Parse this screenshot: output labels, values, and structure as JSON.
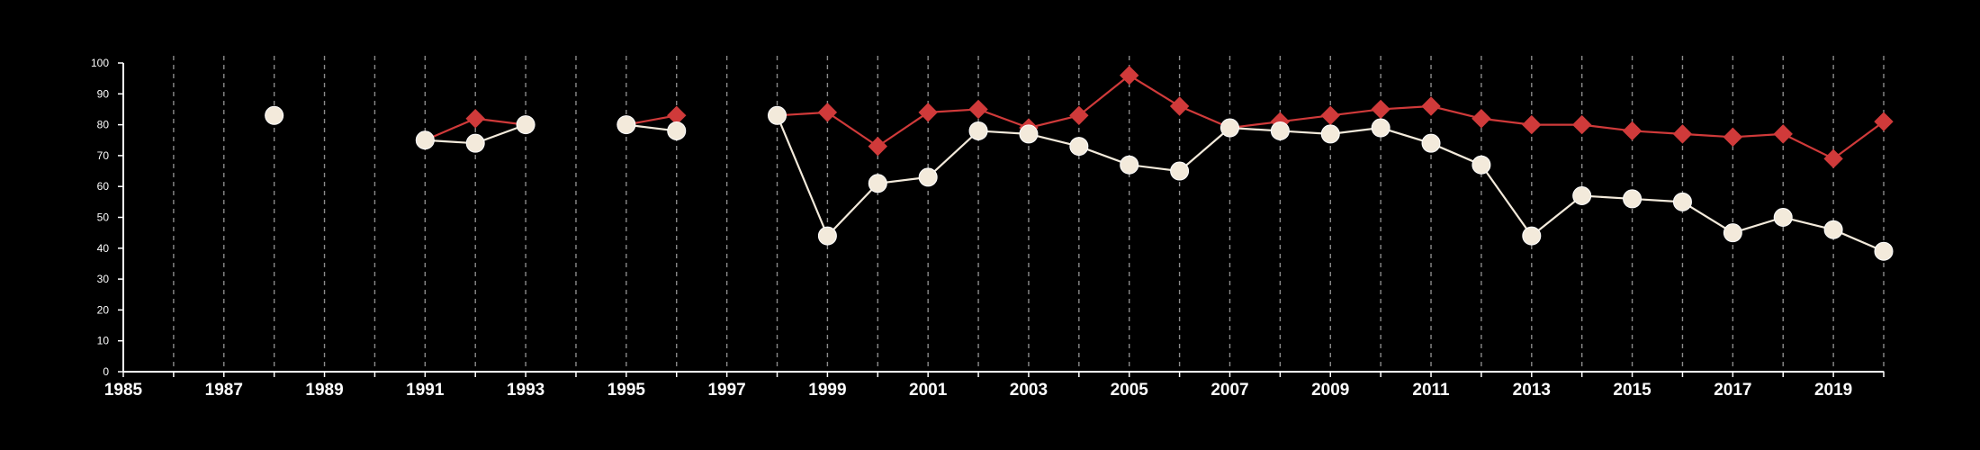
{
  "chart_data": {
    "type": "line",
    "title": "",
    "xlabel": "",
    "ylabel": "",
    "xlim": [
      1985,
      2020
    ],
    "ylim": [
      0,
      100
    ],
    "x_ticks": [
      1985,
      1987,
      1989,
      1991,
      1993,
      1995,
      1997,
      1999,
      2001,
      2003,
      2005,
      2007,
      2009,
      2011,
      2013,
      2015,
      2017,
      2019
    ],
    "y_ticks": [
      0,
      10,
      20,
      30,
      40,
      50,
      60,
      70,
      80,
      90,
      100
    ],
    "grid": "vertical dashed at every year",
    "legend": "none",
    "colors": {
      "background": "#000000",
      "axis": "#ffffff",
      "grid": "#8a8a8a"
    },
    "series": [
      {
        "color": "#d03a3a",
        "marker": "diamond",
        "points": [
          {
            "x": 1988,
            "y": 83
          },
          {
            "x": 1991,
            "y": 75
          },
          {
            "x": 1992,
            "y": 82
          },
          {
            "x": 1993,
            "y": 80
          },
          {
            "x": 1995,
            "y": 80
          },
          {
            "x": 1996,
            "y": 83
          },
          {
            "x": 1998,
            "y": 83
          },
          {
            "x": 1999,
            "y": 84
          },
          {
            "x": 2000,
            "y": 73
          },
          {
            "x": 2001,
            "y": 84
          },
          {
            "x": 2002,
            "y": 85
          },
          {
            "x": 2003,
            "y": 79
          },
          {
            "x": 2004,
            "y": 83
          },
          {
            "x": 2005,
            "y": 96
          },
          {
            "x": 2006,
            "y": 86
          },
          {
            "x": 2007,
            "y": 79
          },
          {
            "x": 2008,
            "y": 81
          },
          {
            "x": 2009,
            "y": 83
          },
          {
            "x": 2010,
            "y": 85
          },
          {
            "x": 2011,
            "y": 86
          },
          {
            "x": 2012,
            "y": 82
          },
          {
            "x": 2013,
            "y": 80
          },
          {
            "x": 2014,
            "y": 80
          },
          {
            "x": 2015,
            "y": 78
          },
          {
            "x": 2016,
            "y": 77
          },
          {
            "x": 2017,
            "y": 76
          },
          {
            "x": 2018,
            "y": 77
          },
          {
            "x": 2019,
            "y": 69
          },
          {
            "x": 2020,
            "y": 81
          }
        ]
      },
      {
        "color": "#f3eadb",
        "marker": "circle",
        "points": [
          {
            "x": 1988,
            "y": 83
          },
          {
            "x": 1991,
            "y": 75
          },
          {
            "x": 1992,
            "y": 74
          },
          {
            "x": 1993,
            "y": 80
          },
          {
            "x": 1995,
            "y": 80
          },
          {
            "x": 1996,
            "y": 78
          },
          {
            "x": 1998,
            "y": 83
          },
          {
            "x": 1999,
            "y": 44
          },
          {
            "x": 2000,
            "y": 61
          },
          {
            "x": 2001,
            "y": 63
          },
          {
            "x": 2002,
            "y": 78
          },
          {
            "x": 2003,
            "y": 77
          },
          {
            "x": 2004,
            "y": 73
          },
          {
            "x": 2005,
            "y": 67
          },
          {
            "x": 2006,
            "y": 65
          },
          {
            "x": 2007,
            "y": 79
          },
          {
            "x": 2008,
            "y": 78
          },
          {
            "x": 2009,
            "y": 77
          },
          {
            "x": 2010,
            "y": 79
          },
          {
            "x": 2011,
            "y": 74
          },
          {
            "x": 2012,
            "y": 67
          },
          {
            "x": 2013,
            "y": 44
          },
          {
            "x": 2014,
            "y": 57
          },
          {
            "x": 2015,
            "y": 56
          },
          {
            "x": 2016,
            "y": 55
          },
          {
            "x": 2017,
            "y": 45
          },
          {
            "x": 2018,
            "y": 50
          },
          {
            "x": 2019,
            "y": 46
          },
          {
            "x": 2020,
            "y": 39
          }
        ]
      }
    ]
  }
}
